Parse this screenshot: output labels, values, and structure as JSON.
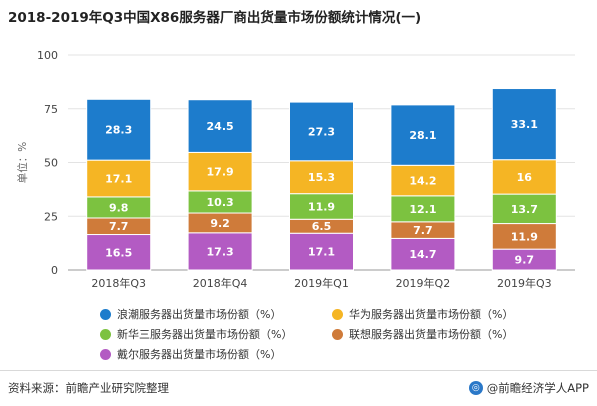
{
  "title": "2018-2019年Q3中国X86服务器厂商出货量市场份额统计情况(一)",
  "source": "资料来源：前瞻产业研究院整理",
  "brand": "@前瞻经济学人APP",
  "brand_logo_glyph": "◎",
  "chart_data": {
    "type": "bar",
    "stacked": true,
    "categories": [
      "2018年Q3",
      "2018年Q4",
      "2019年Q1",
      "2019年Q2",
      "2019年Q3"
    ],
    "ylabel": "单位：%",
    "ylim": [
      0,
      100
    ],
    "yticks": [
      0,
      25,
      50,
      75,
      100
    ],
    "grid": true,
    "legend_position": "bottom",
    "series": [
      {
        "name": "戴尔服务器出货量市场份额（%）",
        "color": "#b35bc3",
        "values": [
          16.5,
          17.3,
          17.1,
          14.7,
          9.7
        ],
        "labels": [
          "16.5",
          "17.3",
          "17.1",
          "14.7",
          "9.7"
        ]
      },
      {
        "name": "联想服务器出货量市场份额（%）",
        "color": "#cf7b3a",
        "values": [
          7.7,
          9.2,
          6.5,
          7.7,
          11.9
        ],
        "labels": [
          "7.7",
          "9.2",
          "6.5",
          "7.7",
          "11.9"
        ]
      },
      {
        "name": "新华三服务器出货量市场份额（%）",
        "color": "#7cc240",
        "values": [
          9.8,
          10.3,
          11.9,
          12.1,
          13.7
        ],
        "labels": [
          "9.8",
          "10.3",
          "11.9",
          "12.1",
          "13.7"
        ]
      },
      {
        "name": "华为服务器出货量市场份额（%）",
        "color": "#f5b524",
        "values": [
          17.1,
          17.9,
          15.3,
          14.2,
          16
        ],
        "labels": [
          "17.1",
          "17.9",
          "15.3",
          "14.2",
          "16"
        ]
      },
      {
        "name": "浪潮服务器出货量市场份额（%）",
        "color": "#1d7ccc",
        "values": [
          28.3,
          24.5,
          27.3,
          28.1,
          33.1
        ],
        "labels": [
          "28.3",
          "24.5",
          "27.3",
          "28.1",
          "33.1"
        ]
      }
    ],
    "legend_order": [
      4,
      3,
      2,
      1,
      0
    ]
  }
}
